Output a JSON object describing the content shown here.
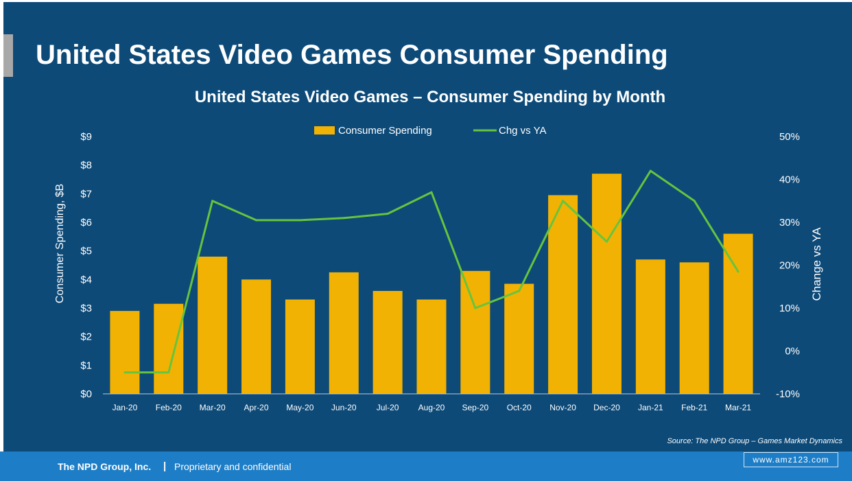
{
  "slide": {
    "title": "United States Video Games Consumer Spending",
    "source": "Source: The NPD Group – Games Market Dynamics",
    "footer_company": "The NPD Group, Inc.",
    "footer_separator": "|",
    "footer_note": "Proprietary and confidential",
    "watermark": "www.amz123.com"
  },
  "colors": {
    "background": "#0d4a78",
    "bar": "#f2b203",
    "line": "#66c43e",
    "text": "#ffffff",
    "footer": "#1d7ec7"
  },
  "chart_data": {
    "type": "bar",
    "title": "United States Video Games – Consumer Spending by Month",
    "categories": [
      "Jan-20",
      "Feb-20",
      "Mar-20",
      "Apr-20",
      "May-20",
      "Jun-20",
      "Jul-20",
      "Aug-20",
      "Sep-20",
      "Oct-20",
      "Nov-20",
      "Dec-20",
      "Jan-21",
      "Feb-21",
      "Mar-21"
    ],
    "series": [
      {
        "name": "Consumer Spending",
        "type": "bar",
        "axis": "left",
        "values": [
          2.9,
          3.15,
          4.8,
          4.0,
          3.3,
          4.25,
          3.6,
          3.3,
          4.3,
          3.85,
          6.95,
          7.7,
          4.7,
          4.6,
          5.6
        ]
      },
      {
        "name": "Chg vs YA",
        "type": "line",
        "axis": "right",
        "values": [
          -5,
          -5,
          35,
          30.5,
          30.5,
          31,
          32,
          37,
          10,
          14,
          35,
          25.5,
          42,
          35,
          18.5
        ]
      }
    ],
    "ylabel": "Consumer Spending, $B",
    "ylim": [
      0,
      9
    ],
    "yticks": [
      "$0",
      "$1",
      "$2",
      "$3",
      "$4",
      "$5",
      "$6",
      "$7",
      "$8",
      "$9"
    ],
    "y2label": "Change vs YA",
    "y2lim": [
      -10,
      50
    ],
    "y2ticks": [
      "-10%",
      "0%",
      "10%",
      "20%",
      "30%",
      "40%",
      "50%"
    ],
    "legend_position": "top-center",
    "grid": false
  }
}
